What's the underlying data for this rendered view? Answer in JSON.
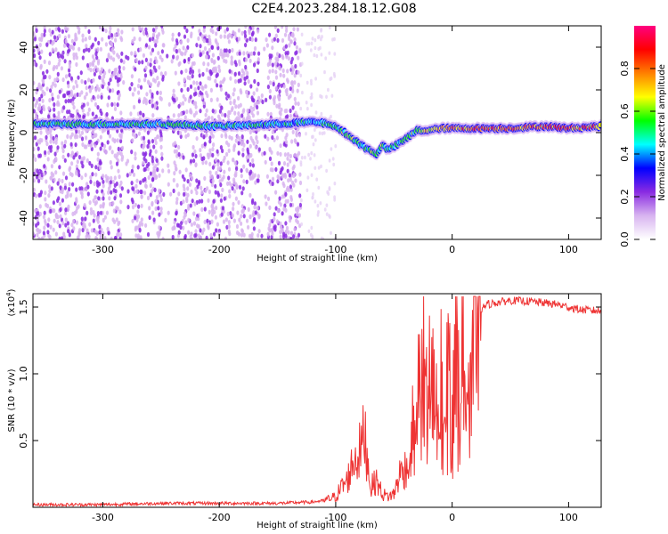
{
  "title": "C2E4.2023.284.18.12.G08",
  "chart_data": [
    {
      "type": "heatmap",
      "xlabel": "Height of straight line (km)",
      "ylabel": "Frequency (Hz)",
      "xlim": [
        -360,
        128
      ],
      "ylim": [
        -50,
        50
      ],
      "xticks": [
        -300,
        -200,
        -100,
        0,
        100
      ],
      "yticks": [
        -40,
        -20,
        0,
        20,
        40
      ],
      "colorbar": {
        "label": "Normalized spectral amplitude",
        "range": [
          0.0,
          1.0
        ],
        "ticks": [
          "0.0",
          "0.2",
          "0.4",
          "0.6",
          "0.8"
        ],
        "colors": [
          "#ffffff",
          "#d8b4f0",
          "#8a2be2",
          "#0000ff",
          "#00ffff",
          "#00ff00",
          "#ffff00",
          "#ff8000",
          "#ff0000",
          "#ff0080"
        ]
      },
      "ridge": {
        "description_free": true,
        "x": [
          -360,
          -300,
          -250,
          -200,
          -150,
          -120,
          -105,
          -95,
          -85,
          -75,
          -65,
          -60,
          -55,
          -45,
          -40,
          -30,
          -20,
          -10,
          0,
          20,
          50,
          80,
          100,
          128
        ],
        "y": [
          4,
          4,
          4,
          3,
          4,
          5,
          4,
          1,
          -3,
          -7,
          -10,
          -6,
          -8,
          -5,
          -3,
          1,
          1,
          2,
          2,
          2,
          2,
          3,
          2,
          3
        ],
        "amplitude": [
          0.55,
          0.55,
          0.6,
          0.55,
          0.5,
          0.5,
          0.55,
          0.6,
          0.6,
          0.6,
          0.65,
          0.6,
          0.55,
          0.6,
          0.6,
          0.65,
          0.75,
          0.8,
          0.85,
          0.9,
          0.9,
          0.9,
          0.9,
          0.85
        ]
      },
      "noise_region": {
        "x": [
          -360,
          -130
        ],
        "scattered_extent_x": [
          -130,
          -100
        ]
      }
    },
    {
      "type": "line",
      "xlabel": "Height of straight line (km)",
      "ylabel": "SNR (10 * v/v)",
      "yscale_label": "(x10",
      "yscale_exp": "4",
      "yscale_close": ")",
      "xlim": [
        -360,
        128
      ],
      "ylim": [
        0,
        1.6
      ],
      "xticks": [
        -300,
        -200,
        -100,
        0,
        100
      ],
      "yticks": [
        "0.5",
        "1.0",
        "1.5"
      ],
      "color": "#ee3333",
      "series": [
        {
          "x": [
            -360,
            -300,
            -250,
            -200,
            -150,
            -120,
            -110,
            -100,
            -95,
            -90,
            -85,
            -80,
            -75,
            -70,
            -65,
            -60,
            -55,
            -50,
            -45,
            -40,
            -35,
            -30,
            -25,
            -20,
            -15,
            -10,
            -5,
            0,
            5,
            10,
            20,
            30,
            50,
            70,
            90,
            100,
            110,
            128
          ],
          "y": [
            0.02,
            0.02,
            0.03,
            0.03,
            0.03,
            0.04,
            0.05,
            0.08,
            0.15,
            0.2,
            0.35,
            0.4,
            0.55,
            0.15,
            0.2,
            0.1,
            0.08,
            0.1,
            0.25,
            0.3,
            0.6,
            0.8,
            1.1,
            1.2,
            1.0,
            1.1,
            1.0,
            1.05,
            1.1,
            1.2,
            1.45,
            1.52,
            1.55,
            1.54,
            1.52,
            1.5,
            1.48,
            1.47
          ]
        }
      ]
    }
  ]
}
